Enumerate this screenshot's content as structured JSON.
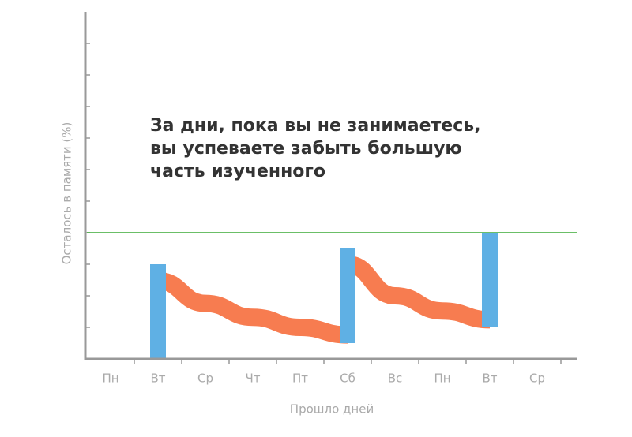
{
  "chart_data": {
    "type": "floating-bar",
    "annotation": [
      "За дни, пока вы не занимаетесь,",
      "вы успеваете забыть большую",
      "часть изученного"
    ],
    "x_label": "Прошло дней",
    "y_label": "Осталось в памяти (%)",
    "categories": [
      "Пн",
      "Вт",
      "Ср",
      "Чт",
      "Пт",
      "Сб",
      "Вс",
      "Пн",
      "Вт",
      "Ср"
    ],
    "ylim": [
      0,
      275
    ],
    "yticks": [
      25,
      50,
      75,
      100,
      125,
      150,
      175,
      200,
      225,
      250
    ],
    "reference_line": {
      "value": 100,
      "color": "#3aaa35"
    },
    "bars": {
      "color": "#5fb0e4",
      "low": [
        null,
        0,
        null,
        null,
        null,
        12.5,
        null,
        null,
        25,
        null
      ],
      "high": [
        null,
        75,
        null,
        null,
        null,
        87.5,
        null,
        null,
        100,
        null
      ]
    },
    "series": [
      {
        "color": "#f77c50",
        "values": [
          null,
          62,
          44,
          33,
          25,
          19,
          null,
          null,
          null,
          null
        ]
      },
      {
        "color": "#f77c50",
        "values": [
          null,
          null,
          null,
          null,
          null,
          75,
          50,
          38,
          31,
          null
        ]
      }
    ]
  }
}
